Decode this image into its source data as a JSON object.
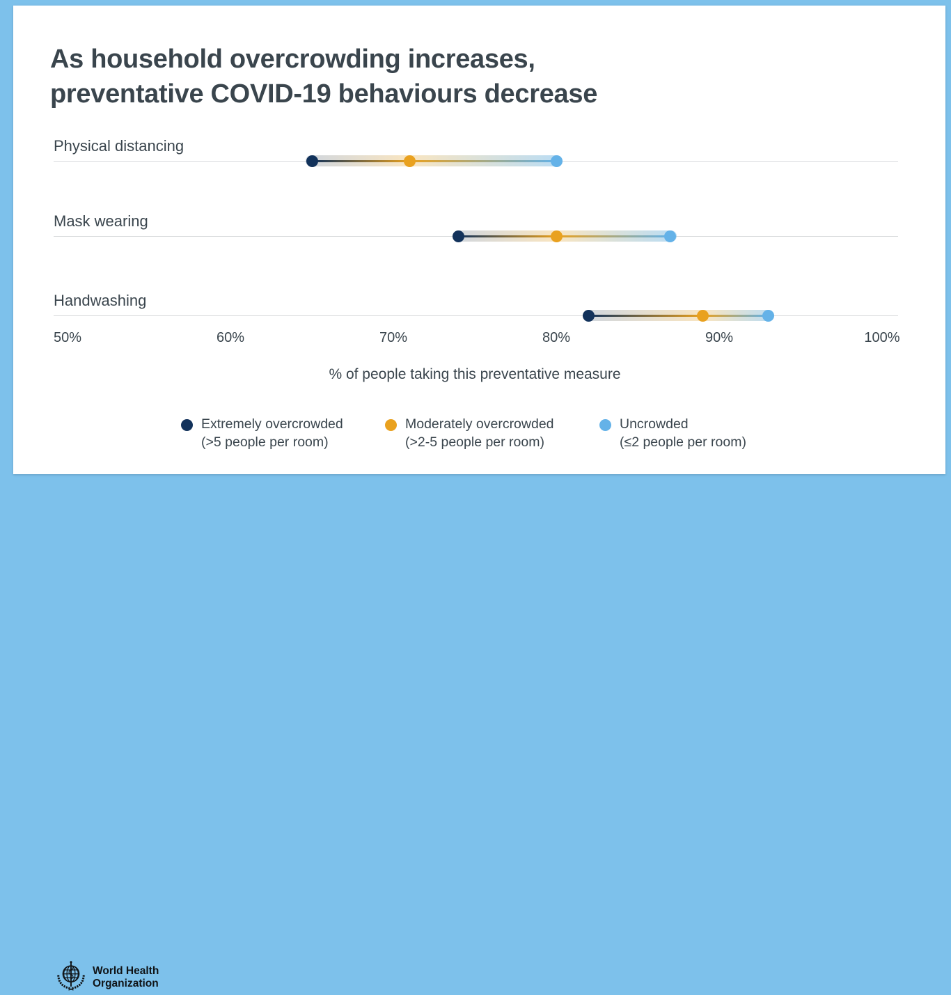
{
  "header": {
    "title_line1": "As household overcrowding increases,",
    "title_line2": "preventative COVID-19 behaviours decrease"
  },
  "chart_data": {
    "type": "dumbbell",
    "title": "As household overcrowding increases, preventative COVID-19 behaviours decrease",
    "categories": [
      "Physical distancing",
      "Mask wearing",
      "Handwashing"
    ],
    "series": [
      {
        "name": "Extremely overcrowded (>5 people per room)",
        "legend_label": "Extremely overcrowded",
        "legend_sublabel": "(>5 people per room)",
        "color": "#12325b",
        "values": [
          65,
          74,
          82
        ]
      },
      {
        "name": "Moderately overcrowded (>2-5 people per room)",
        "legend_label": "Moderately overcrowded",
        "legend_sublabel": "(>2-5 people per room)",
        "color": "#e9a11f",
        "values": [
          71,
          80,
          89
        ]
      },
      {
        "name": "Uncrowded (≤2 people per room)",
        "legend_label": "Uncrowded",
        "legend_sublabel": "(≤2 people per room)",
        "color": "#64b2e8",
        "values": [
          80,
          87,
          93
        ]
      }
    ],
    "xlabel": "% of people taking this preventative measure",
    "xlim": [
      50,
      100
    ],
    "x_ticks": [
      "50%",
      "60%",
      "70%",
      "80%",
      "90%",
      "100%"
    ],
    "grid": false,
    "legend_position": "bottom"
  },
  "footer": {
    "org_line1": "World Health",
    "org_line2": "Organization"
  },
  "colors": {
    "background": "#7dc1eb",
    "card": "#ffffff",
    "text": "#3a454d",
    "baseline": "#d8dadc",
    "extremely_overcrowded": "#12325b",
    "moderately_overcrowded": "#e9a11f",
    "uncrowded": "#64b2e8"
  }
}
